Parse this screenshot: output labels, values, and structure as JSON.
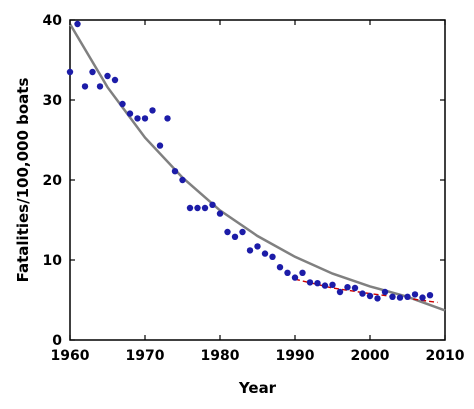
{
  "chart_data": {
    "type": "scatter",
    "title": "",
    "xlabel": "Year",
    "ylabel": "Fatalities/100,000 boats",
    "xlim": [
      1960,
      2010
    ],
    "ylim": [
      0,
      40
    ],
    "x_ticks": [
      1960,
      1970,
      1980,
      1990,
      2000,
      2010
    ],
    "y_ticks": [
      0,
      10,
      20,
      30,
      40
    ],
    "x_tick_labels": [
      "1960",
      "1970",
      "1980",
      "1990",
      "2000",
      "2010"
    ],
    "y_tick_labels": [
      "0",
      "10",
      "20",
      "30",
      "40"
    ],
    "grid": false,
    "legend": "none",
    "series": [
      {
        "kind": "scatter",
        "color": "#1c1ca8",
        "x": [
          1960,
          1961,
          1962,
          1963,
          1964,
          1965,
          1966,
          1967,
          1968,
          1969,
          1970,
          1971,
          1972,
          1973,
          1974,
          1975,
          1976,
          1977,
          1978,
          1979,
          1980,
          1981,
          1982,
          1983,
          1984,
          1985,
          1986,
          1987,
          1988,
          1989,
          1990,
          1991,
          1992,
          1993,
          1994,
          1995,
          1996,
          1997,
          1998,
          1999,
          2000,
          2001,
          2002,
          2003,
          2004,
          2005,
          2006,
          2007,
          2008
        ],
        "y": [
          33.5,
          39.5,
          31.7,
          33.5,
          31.7,
          33.0,
          32.5,
          29.5,
          28.3,
          27.7,
          27.7,
          28.7,
          24.3,
          27.7,
          21.1,
          20.0,
          16.5,
          16.5,
          16.5,
          16.9,
          15.8,
          13.5,
          12.9,
          13.5,
          11.2,
          11.7,
          10.8,
          10.4,
          9.1,
          8.4,
          7.8,
          8.4,
          7.2,
          7.1,
          6.8,
          6.9,
          6.0,
          6.6,
          6.5,
          5.8,
          5.5,
          5.2,
          6.0,
          5.4,
          5.3,
          5.4,
          5.7,
          5.3,
          5.6
        ]
      },
      {
        "kind": "line",
        "style": "solid",
        "color": "#808080",
        "x": [
          1960,
          1965,
          1970,
          1975,
          1980,
          1985,
          1990,
          1995,
          2000,
          2005,
          2010
        ],
        "y": [
          39.5,
          31.6,
          25.3,
          20.3,
          16.2,
          13.0,
          10.4,
          8.3,
          6.7,
          5.4,
          3.7
        ]
      },
      {
        "kind": "line",
        "style": "dashed",
        "color": "#cc0000",
        "x": [
          1990,
          1995,
          2000,
          2005,
          2009
        ],
        "y": [
          7.6,
          6.5,
          5.8,
          5.2,
          4.7
        ]
      }
    ]
  }
}
